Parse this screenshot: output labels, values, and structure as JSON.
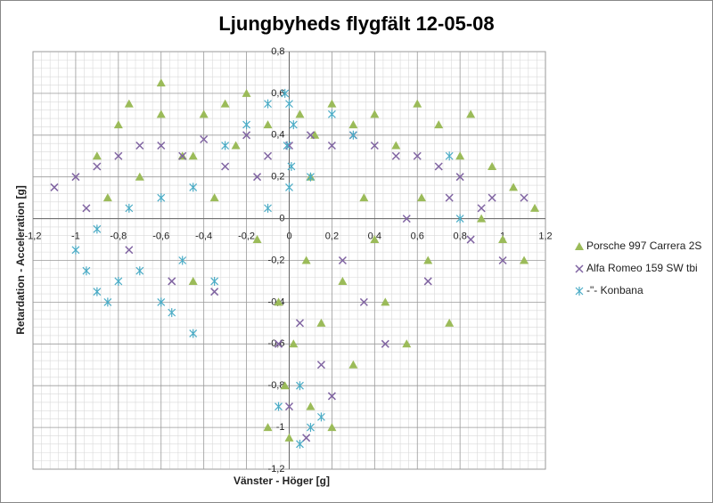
{
  "chart_data": {
    "type": "scatter",
    "title": "Ljungbyheds flygfält 12-05-08",
    "xlabel": "Vänster - Höger [g]",
    "ylabel": "Retardation - Acceleration [g]",
    "xlim": [
      -1.2,
      1.2
    ],
    "ylim": [
      -1.2,
      0.8
    ],
    "xticks": [
      {
        "value": -1.2,
        "label": "-1,2"
      },
      -1,
      {
        "value": -0.8,
        "label": "-0,8"
      },
      {
        "value": -0.6,
        "label": "-0,6"
      },
      {
        "value": -0.4,
        "label": "-0,4"
      },
      {
        "value": -0.2,
        "label": "-0,2"
      },
      0,
      {
        "value": 0.2,
        "label": "0,2"
      },
      {
        "value": 0.4,
        "label": "0,4"
      },
      {
        "value": 0.6,
        "label": "0,6"
      },
      {
        "value": 0.8,
        "label": "0,8"
      },
      1,
      {
        "value": 1.2,
        "label": "1,2"
      }
    ],
    "yticks": [
      {
        "value": -1.2,
        "label": "-1,2"
      },
      -1,
      {
        "value": -0.8,
        "label": "-0,8"
      },
      {
        "value": -0.6,
        "label": "-0,6"
      },
      {
        "value": -0.4,
        "label": "-0,4"
      },
      {
        "value": -0.2,
        "label": "-0,2"
      },
      0,
      {
        "value": 0.2,
        "label": "0,2"
      },
      {
        "value": 0.4,
        "label": "0,4"
      },
      {
        "value": 0.6,
        "label": "0,6"
      },
      {
        "value": 0.8,
        "label": "0,8"
      }
    ],
    "grid": true,
    "legend": "right",
    "series": [
      {
        "name": "Porsche 997 Carrera 2S",
        "color": "#9bbb59",
        "marker": "triangle",
        "x": [
          -0.9,
          -0.85,
          -0.8,
          -0.75,
          -0.7,
          -0.6,
          -0.6,
          -0.5,
          -0.45,
          -0.4,
          -0.35,
          -0.3,
          -0.25,
          -0.2,
          -0.15,
          -0.1,
          -0.05,
          -0.02,
          0,
          0.02,
          0.05,
          0.08,
          0.1,
          0.12,
          0.15,
          0.2,
          0.25,
          0.3,
          0.3,
          0.35,
          0.4,
          0.45,
          0.5,
          0.55,
          0.6,
          0.62,
          0.65,
          0.7,
          0.75,
          0.8,
          0.85,
          0.9,
          0.95,
          1.0,
          1.05,
          1.1,
          1.15,
          0.2,
          -0.1,
          0.4,
          -0.45,
          0.1
        ],
        "y": [
          0.3,
          0.1,
          0.45,
          0.55,
          0.2,
          0.5,
          0.65,
          0.3,
          -0.3,
          0.5,
          0.1,
          0.55,
          0.35,
          0.6,
          -0.1,
          0.45,
          -0.4,
          -0.8,
          -1.05,
          -0.6,
          0.5,
          -0.2,
          -0.9,
          0.4,
          -0.5,
          0.55,
          -0.3,
          0.45,
          -0.7,
          0.1,
          0.5,
          -0.4,
          0.35,
          -0.6,
          0.55,
          0.1,
          -0.2,
          0.45,
          -0.5,
          0.3,
          0.5,
          0.0,
          0.25,
          -0.1,
          0.15,
          -0.2,
          0.05,
          -1.0,
          -1.0,
          -0.1,
          0.3,
          0.2
        ]
      },
      {
        "name": "Alfa Romeo 159 SW tbi",
        "color": "#8064a2",
        "marker": "x",
        "x": [
          -1.1,
          -1.0,
          -0.95,
          -0.9,
          -0.8,
          -0.75,
          -0.7,
          -0.6,
          -0.55,
          -0.5,
          -0.4,
          -0.35,
          -0.3,
          -0.2,
          -0.1,
          0,
          0.05,
          0.08,
          0.1,
          0.15,
          0.2,
          0.25,
          0.3,
          0.35,
          0.4,
          0.45,
          0.5,
          0.55,
          0.6,
          0.65,
          0.7,
          0.75,
          0.8,
          0.85,
          0.9,
          0.95,
          1.0,
          1.1,
          -0.05,
          0.0,
          0.2,
          -0.15
        ],
        "y": [
          0.15,
          0.2,
          0.05,
          0.25,
          0.3,
          -0.15,
          0.35,
          0.35,
          -0.3,
          0.3,
          0.38,
          -0.35,
          0.25,
          0.4,
          0.3,
          0.35,
          -0.5,
          -1.05,
          0.4,
          -0.7,
          0.35,
          -0.2,
          0.4,
          -0.4,
          0.35,
          -0.6,
          0.3,
          0.0,
          0.3,
          -0.3,
          0.25,
          0.1,
          0.2,
          -0.1,
          0.05,
          0.1,
          -0.2,
          0.1,
          -0.6,
          -0.9,
          -0.85,
          0.2
        ]
      },
      {
        "name": "-\"- Konbana",
        "color": "#4bacc6",
        "marker": "asterisk",
        "x": [
          -0.02,
          0,
          0.02,
          -0.01,
          0.01,
          0,
          -0.1,
          -0.2,
          -0.3,
          -0.45,
          -0.6,
          -0.75,
          -0.9,
          -1.0,
          -0.95,
          -0.9,
          -0.85,
          -0.8,
          -0.7,
          -0.6,
          -0.55,
          -0.5,
          -0.45,
          -0.35,
          -0.1,
          0.1,
          0.2,
          0.05,
          -0.05,
          0.1,
          0.05,
          0.15,
          0.3,
          0.75,
          0.8
        ],
        "y": [
          0.6,
          0.55,
          0.45,
          0.35,
          0.25,
          0.15,
          0.55,
          0.45,
          0.35,
          0.15,
          0.1,
          0.05,
          -0.05,
          -0.15,
          -0.25,
          -0.35,
          -0.4,
          -0.3,
          -0.25,
          -0.4,
          -0.45,
          -0.2,
          -0.55,
          -0.3,
          0.05,
          0.2,
          0.5,
          -0.8,
          -0.9,
          -1.0,
          -1.08,
          -0.95,
          0.4,
          0.3,
          0.0
        ]
      }
    ]
  }
}
